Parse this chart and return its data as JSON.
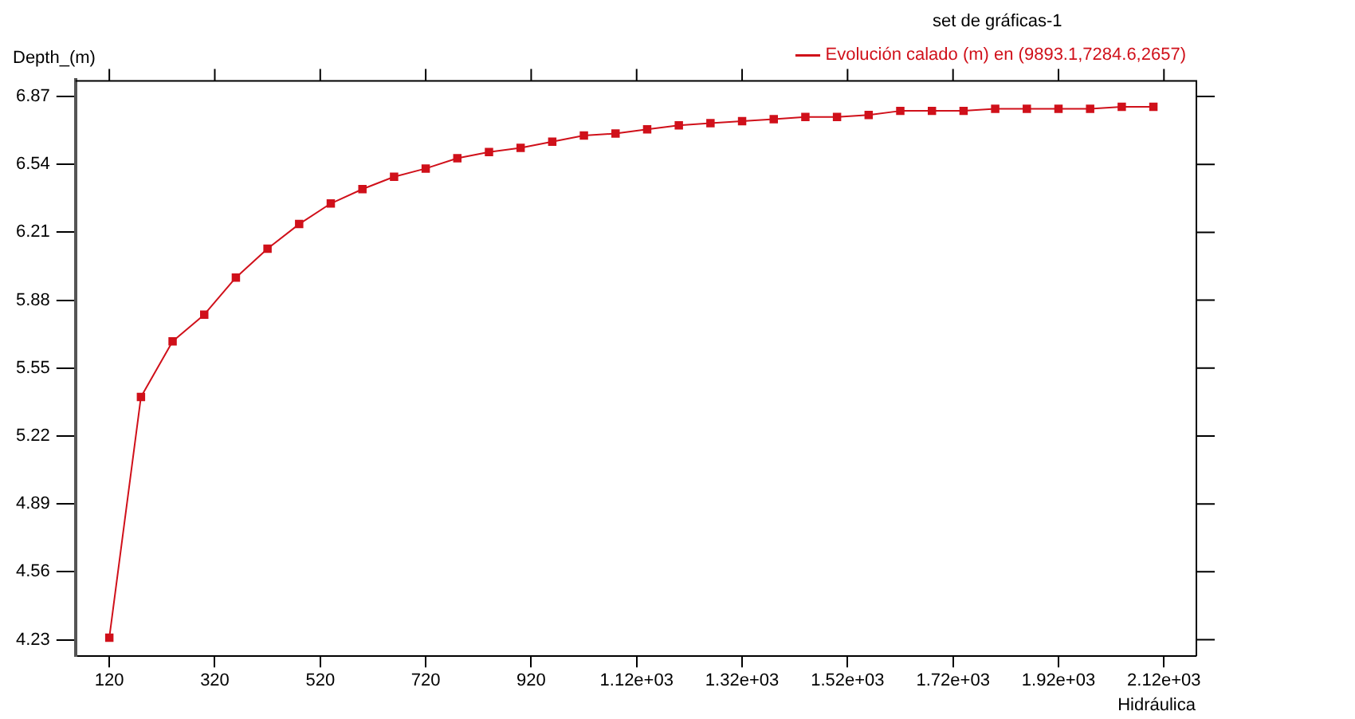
{
  "chart_data": {
    "type": "line",
    "xlabel": "Hidráulica",
    "ylabel": "Depth_(m)",
    "legend_title": "set de gráficas-1",
    "x": [
      120,
      180,
      240,
      300,
      360,
      420,
      480,
      540,
      600,
      660,
      720,
      780,
      840,
      900,
      960,
      1020,
      1080,
      1140,
      1200,
      1260,
      1320,
      1380,
      1440,
      1500,
      1560,
      1620,
      1680,
      1740,
      1800,
      1860,
      1920,
      1980,
      2040,
      2100
    ],
    "series": [
      {
        "name": "Evolución calado (m) en (9893.1,7284.6,2657)",
        "color": "#d0101a",
        "values": [
          4.24,
          5.41,
          5.68,
          5.81,
          5.99,
          6.13,
          6.25,
          6.35,
          6.42,
          6.48,
          6.52,
          6.57,
          6.6,
          6.62,
          6.65,
          6.68,
          6.69,
          6.71,
          6.73,
          6.74,
          6.75,
          6.76,
          6.77,
          6.77,
          6.78,
          6.8,
          6.8,
          6.8,
          6.81,
          6.81,
          6.81,
          6.81,
          6.82,
          6.82
        ]
      }
    ],
    "xlim": [
      56,
      2180
    ],
    "xticks": [
      120,
      320,
      520,
      720,
      920,
      {
        "value": 1120,
        "label": "1.12e+03"
      },
      {
        "value": 1320,
        "label": "1.32e+03"
      },
      {
        "value": 1520,
        "label": "1.52e+03"
      },
      {
        "value": 1720,
        "label": "1.72e+03"
      },
      {
        "value": 1920,
        "label": "1.92e+03"
      },
      {
        "value": 2120,
        "label": "2.12e+03"
      }
    ],
    "ylim": [
      4.15,
      6.95
    ],
    "yticks": [
      4.23,
      4.56,
      4.89,
      5.22,
      5.55,
      5.88,
      6.21,
      6.54,
      6.87
    ],
    "grid": false,
    "legend": "top right",
    "marker": "square",
    "line_style": "solid"
  }
}
